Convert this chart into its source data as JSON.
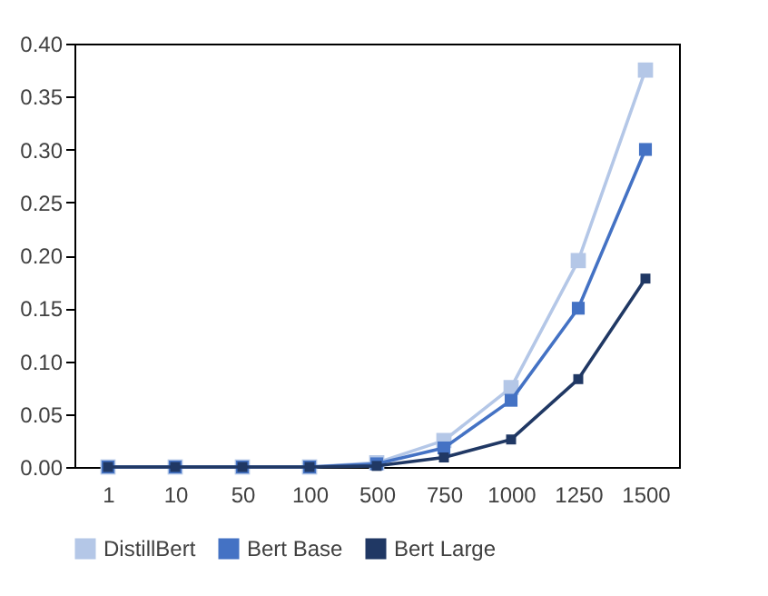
{
  "chart_data": {
    "type": "line",
    "categories": [
      "1",
      "10",
      "50",
      "100",
      "500",
      "750",
      "1000",
      "1250",
      "1500"
    ],
    "series": [
      {
        "name": "DistillBert",
        "color": "#b4c7e7",
        "values": [
          0,
          0,
          0,
          0,
          0.004,
          0.025,
          0.075,
          0.195,
          0.375
        ]
      },
      {
        "name": "Bert Base",
        "color": "#4472c4",
        "values": [
          0,
          0,
          0,
          0,
          0.003,
          0.018,
          0.063,
          0.15,
          0.3
        ]
      },
      {
        "name": "Bert Large",
        "color": "#203864",
        "values": [
          0,
          0,
          0,
          0,
          0.001,
          0.009,
          0.026,
          0.083,
          0.178
        ]
      }
    ],
    "ylim": [
      0,
      0.4
    ],
    "yticks": [
      {
        "value": 0,
        "label": "0.00"
      },
      {
        "value": 0.05,
        "label": "0.05"
      },
      {
        "value": 0.1,
        "label": "0.10"
      },
      {
        "value": 0.15,
        "label": "0.15"
      },
      {
        "value": 0.2,
        "label": "0.20"
      },
      {
        "value": 0.25,
        "label": "0.25"
      },
      {
        "value": 0.3,
        "label": "0.30"
      },
      {
        "value": 0.35,
        "label": "0.35"
      },
      {
        "value": 0.4,
        "label": "0.40"
      }
    ],
    "grid": false,
    "legend": "bottom",
    "marker": "square",
    "line_style": "solid"
  }
}
